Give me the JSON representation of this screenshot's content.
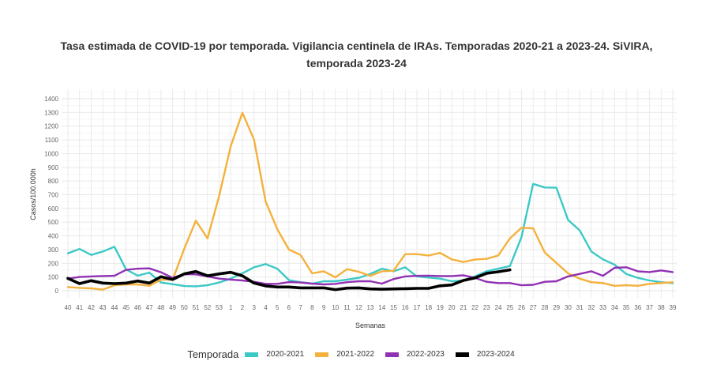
{
  "chart_data": {
    "type": "line",
    "title": "Tasa estimada de COVID-19 por temporada. Vigilancia centinela de IRAs. Temporadas 2020-21 a 2023-24. SiVIRA, temporada 2023-24",
    "title_lines": [
      "Tasa estimada de COVID-19 por temporada. Vigilancia centinela de IRAs. Temporadas 2020-21 a 2023-24. SiVIRA,",
      "temporada 2023-24"
    ],
    "xlabel": "Semanas",
    "ylabel": "Casos/100.000h",
    "ylim": [
      0,
      1400
    ],
    "yticks": [
      0,
      100,
      200,
      300,
      400,
      500,
      600,
      700,
      800,
      900,
      1000,
      1100,
      1200,
      1300,
      1400
    ],
    "grid": true,
    "legend_title": "Temporada",
    "legend_position": "bottom",
    "categories": [
      "40",
      "41",
      "42",
      "43",
      "44",
      "45",
      "46",
      "47",
      "48",
      "49",
      "50",
      "51",
      "52",
      "53",
      "1",
      "2",
      "3",
      "4",
      "5",
      "6",
      "7",
      "8",
      "9",
      "10",
      "11",
      "12",
      "13",
      "14",
      "15",
      "16",
      "17",
      "18",
      "19",
      "20",
      "21",
      "22",
      "23",
      "24",
      "25",
      "26",
      "27",
      "28",
      "29",
      "30",
      "31",
      "32",
      "33",
      "34",
      "35",
      "36",
      "37",
      "38",
      "39"
    ],
    "series": [
      {
        "name": "2020-2021",
        "color": "#3cc9c6",
        "values": [
          273,
          305,
          261,
          286,
          321,
          155,
          110,
          132,
          60,
          48,
          34,
          32,
          40,
          60,
          88,
          127,
          171,
          194,
          161,
          78,
          62,
          52,
          69,
          69,
          81,
          94,
          123,
          161,
          142,
          171,
          104,
          96,
          88,
          69,
          75,
          104,
          142,
          161,
          180,
          392,
          779,
          753,
          751,
          517,
          440,
          286,
          229,
          190,
          123,
          94,
          75,
          62,
          56
        ]
      },
      {
        "name": "2021-2022",
        "color": "#f4b13c",
        "values": [
          27,
          21,
          17,
          8,
          40,
          46,
          46,
          36,
          80,
          80,
          305,
          511,
          382,
          690,
          1054,
          1298,
          1102,
          651,
          449,
          300,
          261,
          127,
          142,
          98,
          157,
          138,
          109,
          142,
          146,
          267,
          267,
          257,
          276,
          229,
          209,
          228,
          232,
          257,
          382,
          459,
          455,
          278,
          203,
          127,
          88,
          62,
          56,
          36,
          40,
          36,
          50,
          56,
          62
        ]
      },
      {
        "name": "2022-2023",
        "color": "#9131b3",
        "values": [
          88,
          100,
          104,
          107,
          109,
          152,
          161,
          163,
          135,
          94,
          121,
          119,
          104,
          88,
          81,
          75,
          65,
          50,
          50,
          63,
          60,
          52,
          46,
          50,
          62,
          69,
          69,
          52,
          85,
          104,
          109,
          110,
          107,
          107,
          113,
          94,
          65,
          56,
          56,
          40,
          43,
          65,
          69,
          104,
          123,
          142,
          109,
          167,
          171,
          142,
          136,
          148,
          136
        ]
      },
      {
        "name": "2023-2024",
        "color": "#000000",
        "values": [
          90,
          52,
          73,
          56,
          52,
          56,
          71,
          56,
          102,
          82,
          123,
          140,
          109,
          123,
          134,
          109,
          56,
          35,
          27,
          27,
          21,
          21,
          21,
          8,
          19,
          21,
          13,
          11,
          13,
          15,
          17,
          17,
          36,
          42,
          75,
          94,
          127,
          138,
          152,
          null,
          null,
          null,
          null,
          null,
          null,
          null,
          null,
          null,
          null,
          null,
          null,
          null,
          null
        ]
      }
    ]
  }
}
